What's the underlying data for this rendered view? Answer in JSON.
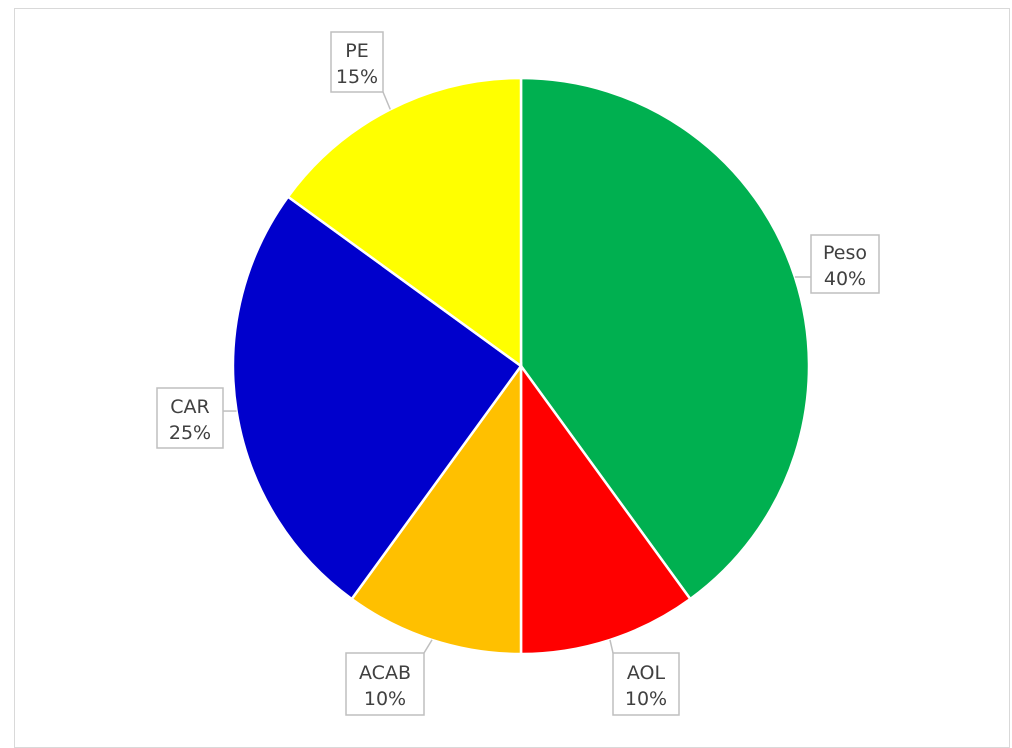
{
  "chart_data": {
    "type": "pie",
    "categories": [
      "Peso",
      "AOL",
      "ACAB",
      "CAR",
      "PE"
    ],
    "values": [
      40,
      10,
      10,
      25,
      15
    ],
    "labels": [
      "40%",
      "10%",
      "10%",
      "25%",
      "15%"
    ],
    "colors": [
      "#00b050",
      "#ff0000",
      "#ffc000",
      "#0000cc",
      "#ffff00"
    ],
    "start_angle": "top",
    "direction": "clockwise",
    "data_label_style": "callout",
    "legend": "none"
  }
}
